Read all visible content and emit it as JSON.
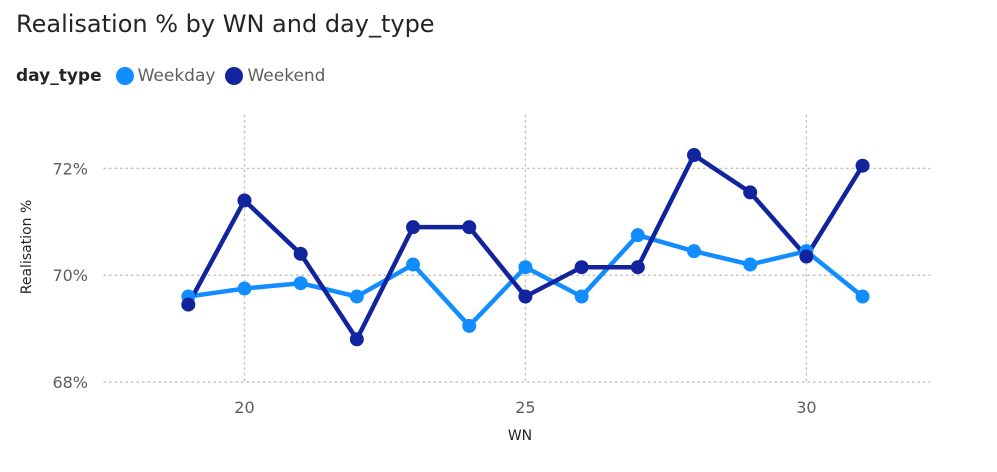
{
  "chart_data": {
    "type": "line",
    "title": "Realisation % by WN and day_type",
    "legend_title": "day_type",
    "legend_position": "top-left",
    "xlabel": "WN",
    "ylabel": "Realisation %",
    "x": [
      19,
      20,
      21,
      22,
      23,
      24,
      25,
      26,
      27,
      28,
      29,
      30,
      31
    ],
    "xlim": [
      17.5,
      32.2
    ],
    "ylim": [
      68,
      73
    ],
    "x_ticks": [
      20,
      25,
      30
    ],
    "x_tick_labels": [
      "20",
      "25",
      "30"
    ],
    "y_ticks": [
      68,
      70,
      72
    ],
    "y_tick_labels": [
      "68%",
      "70%",
      "72%"
    ],
    "grid": true,
    "series": [
      {
        "name": "Weekday",
        "color": "#118DFF",
        "values": [
          69.6,
          69.75,
          69.85,
          69.6,
          70.2,
          69.05,
          70.15,
          69.6,
          70.75,
          70.45,
          70.2,
          70.45,
          69.6
        ]
      },
      {
        "name": "Weekend",
        "color": "#12239E",
        "values": [
          69.45,
          71.4,
          70.4,
          68.8,
          70.9,
          70.9,
          69.6,
          70.15,
          70.15,
          72.25,
          71.55,
          70.35,
          72.05
        ]
      }
    ]
  }
}
